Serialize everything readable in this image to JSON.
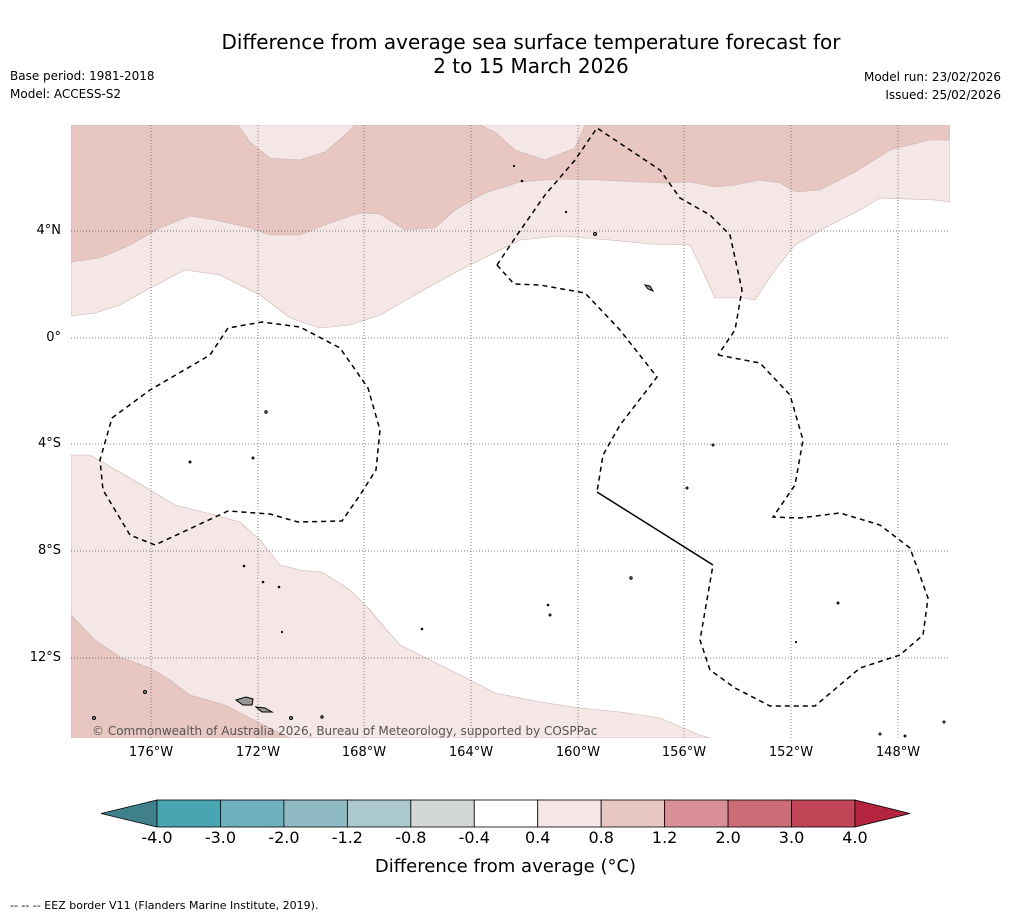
{
  "title": {
    "line1": "Difference from average sea surface temperature forecast for",
    "line2": "2 to 15 March 2026"
  },
  "meta": {
    "base_period": "Base period: 1981-2018",
    "model": "Model: ACCESS-S2",
    "model_run": "Model run: 23/02/2026",
    "issued": "Issued: 25/02/2026"
  },
  "lat_labels": [
    "4°N",
    "0°",
    "4°S",
    "8°S",
    "12°S"
  ],
  "lon_labels": [
    "176°W",
    "172°W",
    "168°W",
    "164°W",
    "160°W",
    "156°W",
    "152°W",
    "148°W"
  ],
  "copyright": "© Commonwealth of Australia 2026, Bureau of Meteorology, supported by COSPPac",
  "colorbar": {
    "title": "Difference from average (°C)",
    "ticks": [
      "-4.0",
      "-3.0",
      "-2.0",
      "-1.2",
      "-0.8",
      "-0.4",
      "0.4",
      "0.8",
      "1.2",
      "2.0",
      "3.0",
      "4.0"
    ],
    "colors": [
      "#40808a",
      "#4aa5b3",
      "#6eb0bd",
      "#8fbac4",
      "#aac8ce",
      "#d3d7d8",
      "#ffffff",
      "#f4e7e6",
      "#e8c7c3",
      "#d88f96",
      "#cd6b76",
      "#c14556",
      "#b5243f"
    ]
  },
  "footnote": "-- -- -- EEZ border V11 (Flanders Marine Institute, 2019).",
  "colors": {
    "band_0_4": "#f4e7e6",
    "band_0_8": "#e8c7c3",
    "grid": "#666666",
    "land": "#999999"
  }
}
